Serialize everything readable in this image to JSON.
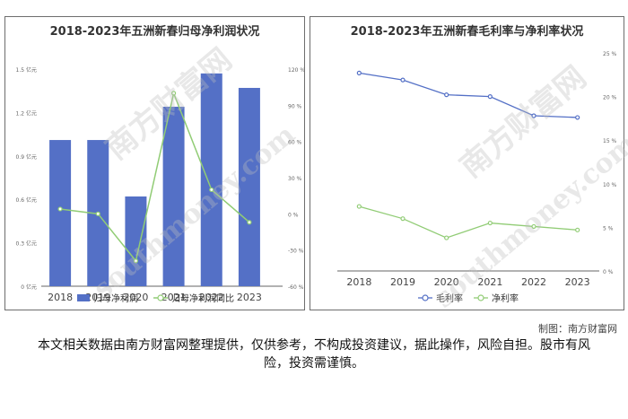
{
  "charts": {
    "left": {
      "title": "2018-2023年五洲新春归母净利润状况",
      "y_left_ticks": [
        "1.5 亿元",
        "1.2 亿元",
        "0.9 亿元",
        "0.6 亿元",
        "0.3 亿元",
        "0 亿元"
      ],
      "y_right_ticks": [
        "120 %",
        "90 %",
        "60 %",
        "30 %",
        "0 %",
        "-30 %",
        "-60 %"
      ]
    },
    "right": {
      "title": "2018-2023年五洲新春毛利率与净利率状况",
      "y_right_ticks": [
        "25 %",
        "20 %",
        "15 %",
        "10 %",
        "5 %",
        "0 %"
      ]
    }
  },
  "chart_data": [
    {
      "type": "bar",
      "title": "2018-2023年五洲新春归母净利润状况",
      "categories": [
        "2018",
        "2019",
        "2020",
        "2021",
        "2022",
        "2023"
      ],
      "series": [
        {
          "name": "归母净利润",
          "axis": "left",
          "kind": "bar",
          "color": "#5470c6",
          "values": [
            1.01,
            1.01,
            0.62,
            1.24,
            1.47,
            1.37
          ]
        },
        {
          "name": "归母净利润同比",
          "axis": "right",
          "kind": "line",
          "color": "#91cc75",
          "values": [
            4,
            0,
            -39,
            100,
            20,
            -7
          ]
        }
      ],
      "ylim_left": [
        0,
        1.5
      ],
      "ylim_right": [
        -60,
        120
      ],
      "legend_position": "bottom"
    },
    {
      "type": "line",
      "title": "2018-2023年五洲新春毛利率与净利率状况",
      "categories": [
        "2018",
        "2019",
        "2020",
        "2021",
        "2022",
        "2023"
      ],
      "series": [
        {
          "name": "毛利率",
          "color": "#5470c6",
          "values": [
            22.7,
            21.9,
            20.2,
            20.0,
            17.8,
            17.6
          ]
        },
        {
          "name": "净利率",
          "color": "#91cc75",
          "values": [
            7.4,
            6.0,
            3.8,
            5.5,
            5.1,
            4.7
          ]
        }
      ],
      "ylim": [
        0,
        25
      ],
      "legend_position": "bottom"
    }
  ],
  "watermark": {
    "brand": "南方财富网",
    "domain": "southmoney.com"
  },
  "credit": "制图：南方财富网",
  "disclaimer": "本文相关数据由南方财富网整理提供，仅供参考，不构成投资建议，据此操作，风险自担。股市有风险，投资需谨慎。"
}
